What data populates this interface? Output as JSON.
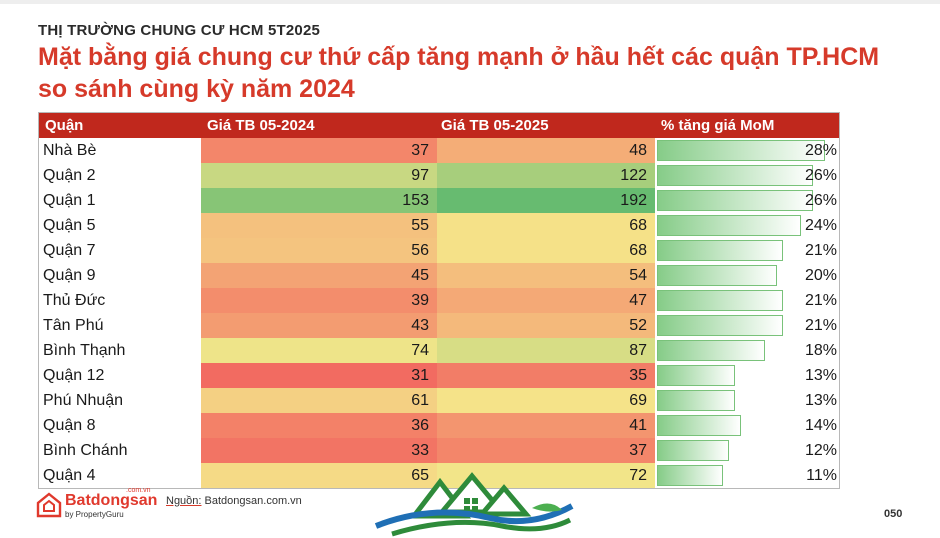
{
  "subtitle": "THỊ TRƯỜNG CHUNG CƯ HCM 5T2025",
  "title_line1": "Mặt bằng giá chung cư thứ cấp tăng mạnh ở hầu hết các quận TP.HCM",
  "title_line2": "so sánh cùng kỳ năm 2024",
  "headers": [
    "Quận",
    "Giá TB 05-2024",
    "Giá TB 05-2025",
    "% tăng giá MoM"
  ],
  "colors": {
    "header_bg": "#c0281d",
    "title": "#d63a2a",
    "heat_low": "#f26b61",
    "heat_mid": "#f5e68a",
    "heat_high": "#67bb70",
    "bar": "#86cc88"
  },
  "chart_data": {
    "type": "table",
    "columns": [
      "Quận",
      "Giá TB 05-2024",
      "Giá TB 05-2025",
      "% tăng giá MoM"
    ],
    "rows": [
      {
        "district": "Nhà Bè",
        "price_2024": 37,
        "price_2025": 48,
        "growth_pct": 28,
        "growth_label": "28%"
      },
      {
        "district": "Quận 2",
        "price_2024": 97,
        "price_2025": 122,
        "growth_pct": 26,
        "growth_label": "26%"
      },
      {
        "district": "Quận 1",
        "price_2024": 153,
        "price_2025": 192,
        "growth_pct": 26,
        "growth_label": "26%"
      },
      {
        "district": "Quận 5",
        "price_2024": 55,
        "price_2025": 68,
        "growth_pct": 24,
        "growth_label": "24%"
      },
      {
        "district": "Quận 7",
        "price_2024": 56,
        "price_2025": 68,
        "growth_pct": 21,
        "growth_label": "21%"
      },
      {
        "district": "Quận 9",
        "price_2024": 45,
        "price_2025": 54,
        "growth_pct": 20,
        "growth_label": "20%"
      },
      {
        "district": "Thủ Đức",
        "price_2024": 39,
        "price_2025": 47,
        "growth_pct": 21,
        "growth_label": "21%"
      },
      {
        "district": "Tân Phú",
        "price_2024": 43,
        "price_2025": 52,
        "growth_pct": 21,
        "growth_label": "21%"
      },
      {
        "district": "Bình Thạnh",
        "price_2024": 74,
        "price_2025": 87,
        "growth_pct": 18,
        "growth_label": "18%"
      },
      {
        "district": "Quận 12",
        "price_2024": 31,
        "price_2025": 35,
        "growth_pct": 13,
        "growth_label": "13%"
      },
      {
        "district": "Phú Nhuận",
        "price_2024": 61,
        "price_2025": 69,
        "growth_pct": 13,
        "growth_label": "13%"
      },
      {
        "district": "Quận 8",
        "price_2024": 36,
        "price_2025": 41,
        "growth_pct": 14,
        "growth_label": "14%"
      },
      {
        "district": "Bình Chánh",
        "price_2024": 33,
        "price_2025": 37,
        "growth_pct": 12,
        "growth_label": "12%"
      },
      {
        "district": "Quận 4",
        "price_2024": 65,
        "price_2025": 72,
        "growth_pct": 11,
        "growth_label": "11%"
      }
    ]
  },
  "logo": {
    "name": "Batdongsan",
    "domain_suffix": ".com.vn",
    "byline": "by PropertyGuru",
    "icon": "house-logo-icon"
  },
  "source_label": "Nguồn:",
  "source_value": "Batdongsan.com.vn",
  "page_number": "050",
  "watermark_icon": "house-wave-watermark-icon"
}
